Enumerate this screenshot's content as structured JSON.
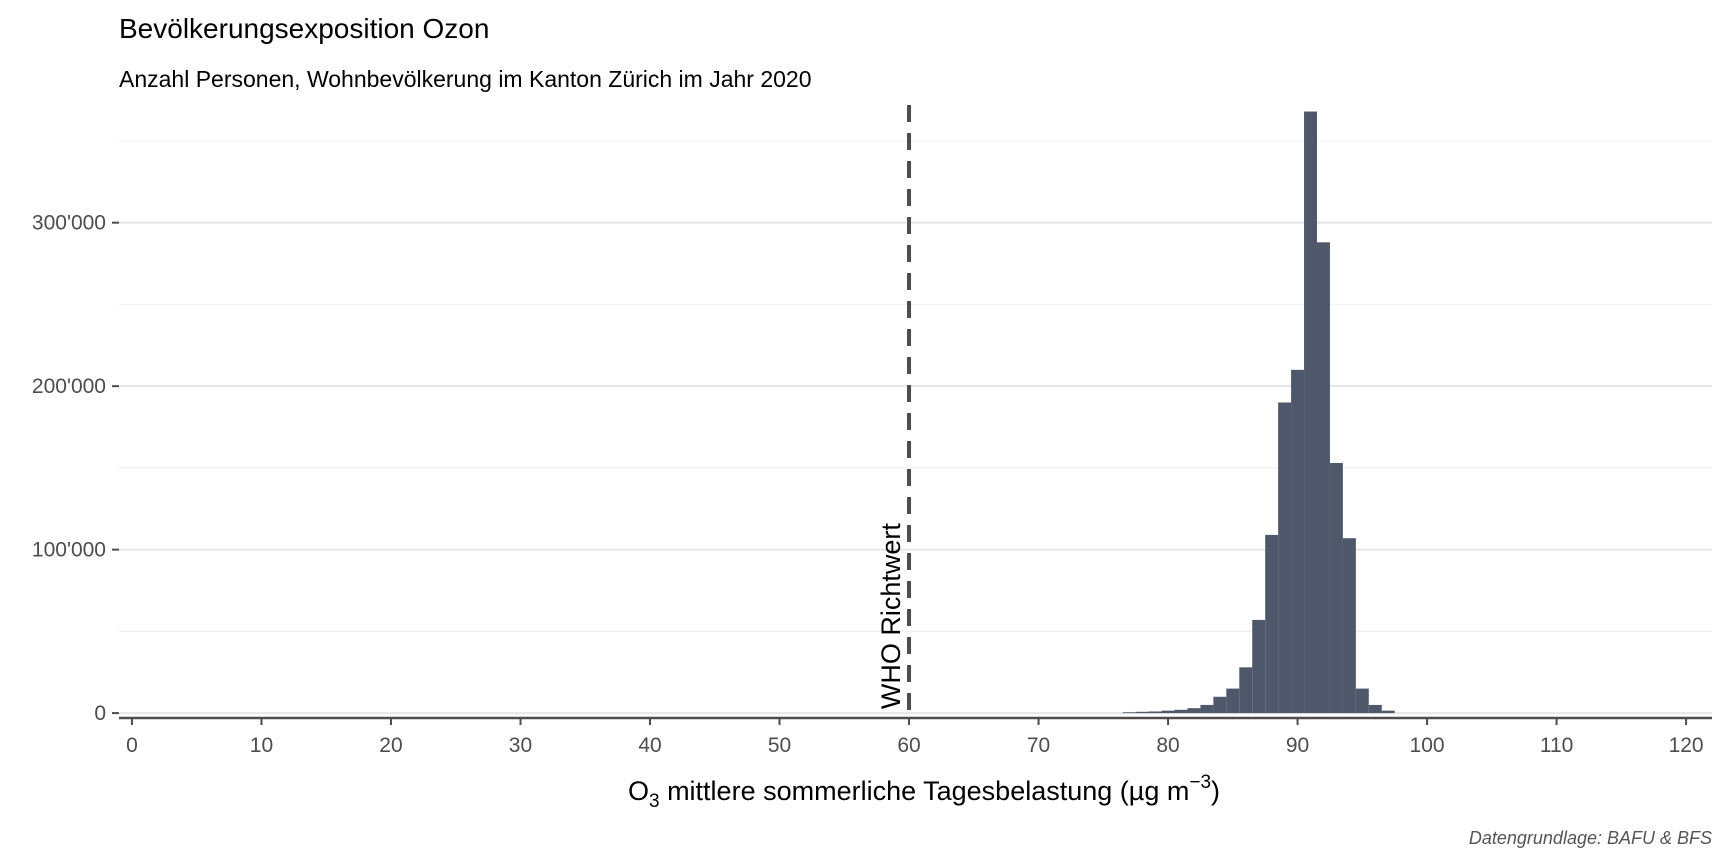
{
  "chart_data": {
    "type": "bar",
    "title": "Bevölkerungsexposition Ozon",
    "subtitle": "Anzahl Personen, Wohnbevölkerung im Kanton Zürich im Jahr 2020",
    "xlabel": {
      "prefix": "O",
      "subscript": "3",
      "main": " mittlere sommerliche Tagesbelastung (µg m",
      "superscript": "−3",
      "suffix": ")"
    },
    "caption": "Datengrundlage: BAFU & BFS",
    "xlim": [
      -1,
      122
    ],
    "ylim": [
      -3000,
      372000
    ],
    "x_ticks": [
      0,
      10,
      20,
      30,
      40,
      50,
      60,
      70,
      80,
      90,
      100,
      110,
      120
    ],
    "x_tick_labels": [
      "0",
      "10",
      "20",
      "30",
      "40",
      "50",
      "60",
      "70",
      "80",
      "90",
      "100",
      "110",
      "120"
    ],
    "y_ticks": [
      0,
      100000,
      200000,
      300000
    ],
    "y_tick_labels": [
      "0",
      "100'000",
      "200'000",
      "300'000"
    ],
    "y_minor_ticks": [
      50000,
      150000,
      250000,
      350000
    ],
    "grid": true,
    "bin_width": 1,
    "bins": [
      {
        "x": 77,
        "value": 500
      },
      {
        "x": 78,
        "value": 800
      },
      {
        "x": 79,
        "value": 1000
      },
      {
        "x": 80,
        "value": 1500
      },
      {
        "x": 81,
        "value": 2000
      },
      {
        "x": 82,
        "value": 3000
      },
      {
        "x": 83,
        "value": 5000
      },
      {
        "x": 84,
        "value": 10000
      },
      {
        "x": 85,
        "value": 15000
      },
      {
        "x": 86,
        "value": 28000
      },
      {
        "x": 87,
        "value": 57000
      },
      {
        "x": 88,
        "value": 109000
      },
      {
        "x": 89,
        "value": 190000
      },
      {
        "x": 90,
        "value": 210000
      },
      {
        "x": 91,
        "value": 368000
      },
      {
        "x": 92,
        "value": 288000
      },
      {
        "x": 93,
        "value": 153000
      },
      {
        "x": 94,
        "value": 107000
      },
      {
        "x": 95,
        "value": 15000
      },
      {
        "x": 96,
        "value": 5000
      },
      {
        "x": 97,
        "value": 1500
      }
    ],
    "bar_color": "#4e586a",
    "reference_line": {
      "x": 60,
      "label": "WHO Richtwert",
      "color": "#4d4d4d",
      "style": "dashed"
    }
  }
}
